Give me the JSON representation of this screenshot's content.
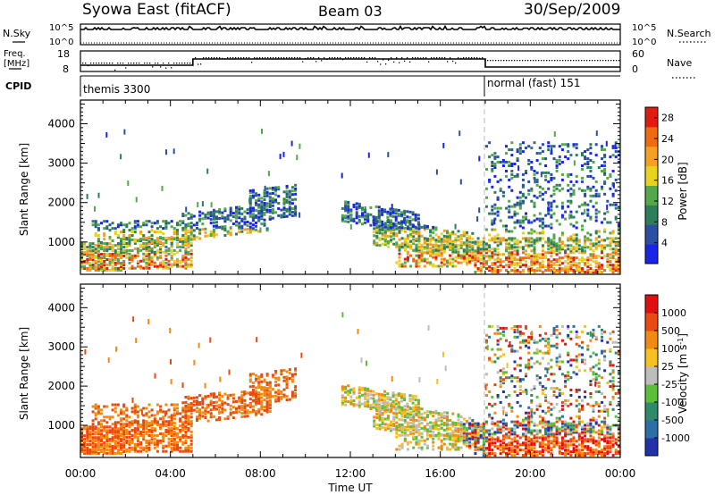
{
  "header": {
    "station": "Syowa East (fitACF)",
    "beam": "Beam 03",
    "date": "30/Sep/2009"
  },
  "nsky_panel": {
    "label": "N.Sky",
    "tick_top": "10^5",
    "tick_bottom": "10^0",
    "right_label": "N.Search",
    "right_tick_top": "10^5",
    "right_tick_bottom": "10^0"
  },
  "freq_panel": {
    "label_line1": "Freq.",
    "label_line2": "[MHz]",
    "tick_top": "18",
    "tick_bottom": "8",
    "right_label": "Nave",
    "right_tick_top": "60",
    "right_tick_bottom": "0"
  },
  "cpid_panel": {
    "label": "CPID",
    "mode1": "themis 3300",
    "mode2": "normal (fast) 151"
  },
  "chart_data": [
    {
      "type": "heatmap",
      "quantity": "Power",
      "ylabel": "Slant Range [km]",
      "xlabel": "",
      "ylim": [
        180,
        4600
      ],
      "yticks": [
        "1000",
        "2000",
        "3000",
        "4000"
      ],
      "colorbar": {
        "label": "Power [dB]",
        "ticks": [
          "4",
          "8",
          "12",
          "16",
          "20",
          "24",
          "28"
        ],
        "range": [
          0,
          30
        ],
        "colors": [
          "#1a24e6",
          "#2b4fa3",
          "#2e7d5b",
          "#55a84a",
          "#e8d21e",
          "#f5a020",
          "#f06a10",
          "#e21a10"
        ]
      },
      "mode_change_hour": 18.0
    },
    {
      "type": "heatmap",
      "quantity": "Velocity",
      "ylabel": "Slant Range [km]",
      "xlabel": "Time UT",
      "ylim": [
        180,
        4600
      ],
      "yticks": [
        "1000",
        "2000",
        "3000",
        "4000"
      ],
      "xticks": [
        "00:00",
        "04:00",
        "08:00",
        "12:00",
        "16:00",
        "20:00",
        "00:00"
      ],
      "xlim_hours": [
        0,
        24
      ],
      "colorbar": {
        "label": "Velocity [m s^-1]",
        "ticks": [
          "1000",
          "500",
          "100",
          "25",
          "-25",
          "-100",
          "-500",
          "-1000"
        ],
        "colors": [
          "#2233aa",
          "#2b6ea8",
          "#2e8a6a",
          "#5cbf3a",
          "#bdbdbd",
          "#f5c020",
          "#f08a10",
          "#e84a10",
          "#e01010"
        ]
      },
      "mode_change_hour": 18.0
    }
  ]
}
